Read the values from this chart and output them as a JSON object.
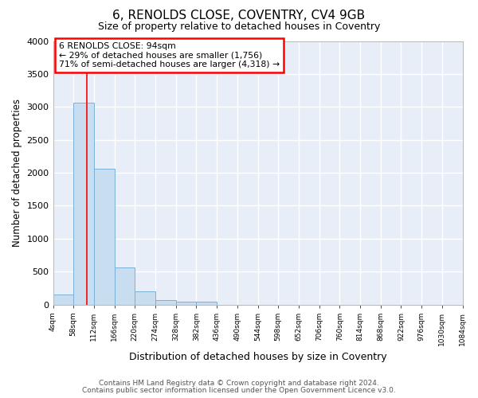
{
  "title": "6, RENOLDS CLOSE, COVENTRY, CV4 9GB",
  "subtitle": "Size of property relative to detached houses in Coventry",
  "xlabel": "Distribution of detached houses by size in Coventry",
  "ylabel": "Number of detached properties",
  "bar_color": "#c9ddf0",
  "bar_edge_color": "#7ab0d8",
  "background_color": "#e8eef8",
  "fig_background": "#ffffff",
  "grid_color": "#ffffff",
  "bins": [
    4,
    58,
    112,
    166,
    220,
    274,
    328,
    382,
    436,
    490,
    544,
    598,
    652,
    706,
    760,
    814,
    868,
    922,
    976,
    1030,
    1084
  ],
  "bar_heights": [
    155,
    3060,
    2060,
    560,
    205,
    65,
    45,
    45,
    0,
    0,
    0,
    0,
    0,
    0,
    0,
    0,
    0,
    0,
    0,
    0
  ],
  "red_line_x": 94,
  "ylim": [
    0,
    4000
  ],
  "yticks": [
    0,
    500,
    1000,
    1500,
    2000,
    2500,
    3000,
    3500,
    4000
  ],
  "annotation_title": "6 RENOLDS CLOSE: 94sqm",
  "annotation_line1": "← 29% of detached houses are smaller (1,756)",
  "annotation_line2": "71% of semi-detached houses are larger (4,318) →",
  "footer1": "Contains HM Land Registry data © Crown copyright and database right 2024.",
  "footer2": "Contains public sector information licensed under the Open Government Licence v3.0.",
  "tick_labels": [
    "4sqm",
    "58sqm",
    "112sqm",
    "166sqm",
    "220sqm",
    "274sqm",
    "328sqm",
    "382sqm",
    "436sqm",
    "490sqm",
    "544sqm",
    "598sqm",
    "652sqm",
    "706sqm",
    "760sqm",
    "814sqm",
    "868sqm",
    "922sqm",
    "976sqm",
    "1030sqm",
    "1084sqm"
  ]
}
